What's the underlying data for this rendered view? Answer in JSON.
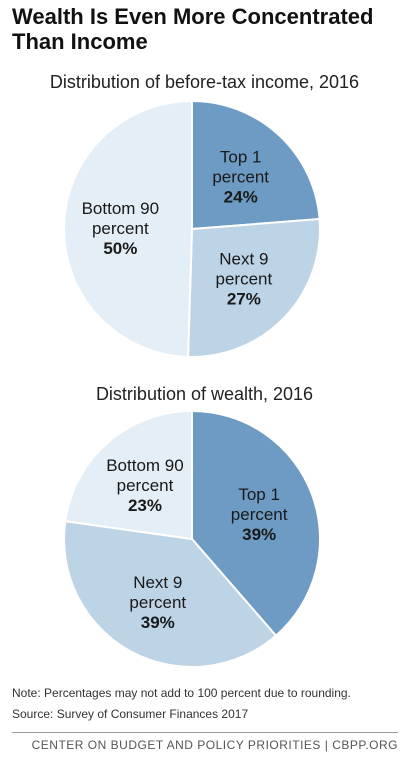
{
  "title": "Wealth Is Even More Concentrated Than Income",
  "note": "Note: Percentages may not add to 100 percent due to rounding.",
  "source": "Source: Survey of Consumer Finances 2017",
  "footer": "CENTER ON BUDGET AND POLICY PRIORITIES | CBPP.ORG",
  "colors": {
    "top1": "#6d9bc3",
    "next9": "#bdd3e6",
    "bottom90": "#e4eef6",
    "stroke": "#ffffff"
  },
  "chart_data": [
    {
      "type": "pie",
      "title": "Distribution of before-tax income, 2016",
      "slices": [
        {
          "name_lines": [
            "Top 1",
            "percent"
          ],
          "value": 24,
          "label": "24%",
          "color_key": "top1"
        },
        {
          "name_lines": [
            "Next 9",
            "percent"
          ],
          "value": 27,
          "label": "27%",
          "color_key": "next9"
        },
        {
          "name_lines": [
            "Bottom 90",
            "percent"
          ],
          "value": 50,
          "label": "50%",
          "color_key": "bottom90"
        }
      ]
    },
    {
      "type": "pie",
      "title": "Distribution of wealth, 2016",
      "slices": [
        {
          "name_lines": [
            "Top 1",
            "percent"
          ],
          "value": 39,
          "label": "39%",
          "color_key": "top1"
        },
        {
          "name_lines": [
            "Next 9",
            "percent"
          ],
          "value": 39,
          "label": "39%",
          "color_key": "next9"
        },
        {
          "name_lines": [
            "Bottom 90",
            "percent"
          ],
          "value": 23,
          "label": "23%",
          "color_key": "bottom90"
        }
      ]
    }
  ]
}
